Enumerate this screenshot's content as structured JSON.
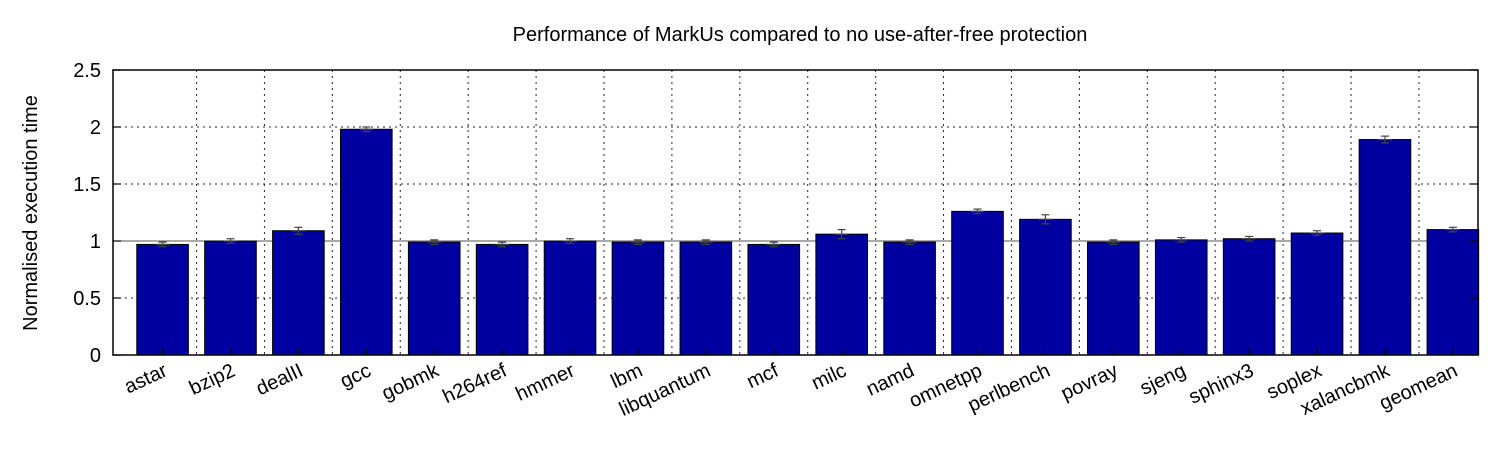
{
  "chart_data": {
    "type": "bar",
    "title": "Performance of MarkUs compared to no use-after-free protection",
    "xlabel": "",
    "ylabel": "Normalised execution time",
    "ylim": [
      0,
      2.5
    ],
    "yticks": [
      "0",
      "0.5",
      "1",
      "1.5",
      "2",
      "2.5"
    ],
    "ytick_values": [
      0,
      0.5,
      1,
      1.5,
      2,
      2.5
    ],
    "grid": true,
    "reference_line": 1,
    "bar_color": "#0000A0",
    "categories": [
      "astar",
      "bzip2",
      "dealII",
      "gcc",
      "gobmk",
      "h264ref",
      "hmmer",
      "lbm",
      "libquantum",
      "mcf",
      "milc",
      "namd",
      "omnetpp",
      "perlbench",
      "povray",
      "sjeng",
      "sphinx3",
      "soplex",
      "xalancbmk",
      "geomean"
    ],
    "values": [
      0.97,
      1.0,
      1.09,
      1.98,
      0.99,
      0.97,
      1.0,
      0.99,
      0.99,
      0.97,
      1.06,
      0.99,
      1.26,
      1.19,
      0.99,
      1.01,
      1.02,
      1.07,
      1.89,
      1.1
    ],
    "errors": [
      0.02,
      0.02,
      0.03,
      0.02,
      0.02,
      0.02,
      0.02,
      0.02,
      0.02,
      0.02,
      0.04,
      0.02,
      0.02,
      0.04,
      0.02,
      0.02,
      0.02,
      0.02,
      0.03,
      0.02
    ]
  }
}
